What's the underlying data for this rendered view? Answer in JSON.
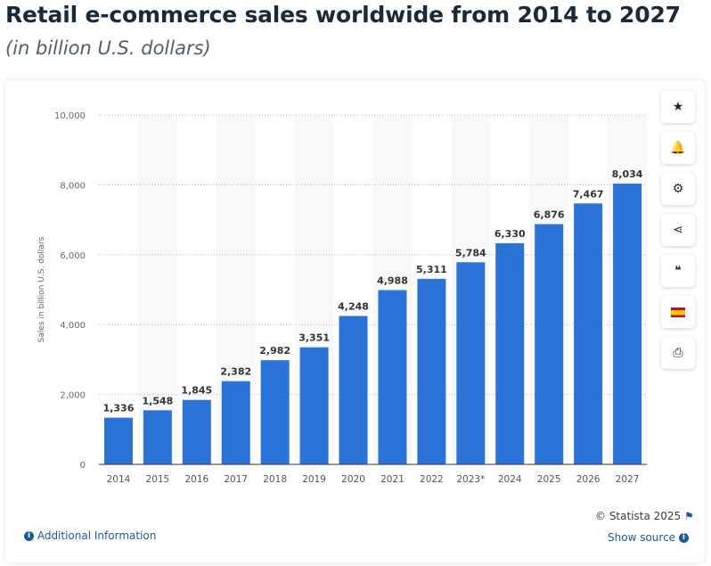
{
  "title": "Retail e-commerce sales worldwide from 2014 to 2027",
  "subtitle": "(in billion U.S. dollars)",
  "chart_data": {
    "type": "bar",
    "title": "Retail e-commerce sales worldwide from 2014 to 2027",
    "ylabel": "Sales in billion U.S. dollars",
    "xlabel": "",
    "ylim": [
      0,
      10000
    ],
    "yticks": [
      "0",
      "2,000",
      "4,000",
      "6,000",
      "8,000",
      "10,000"
    ],
    "ytick_values": [
      0,
      2000,
      4000,
      6000,
      8000,
      10000
    ],
    "categories": [
      "2014",
      "2015",
      "2016",
      "2017",
      "2018",
      "2019",
      "2020",
      "2021",
      "2022",
      "2023*",
      "2024",
      "2025",
      "2026",
      "2027"
    ],
    "values": [
      1336,
      1548,
      1845,
      2382,
      2982,
      3351,
      4248,
      4988,
      5311,
      5784,
      6330,
      6876,
      7467,
      8034
    ],
    "labels": [
      "1,336",
      "1,548",
      "1,845",
      "2,382",
      "2,982",
      "3,351",
      "4,248",
      "4,988",
      "5,311",
      "5,784",
      "6,330",
      "6,876",
      "7,467",
      "8,034"
    ],
    "bar_color": "#2b73d6",
    "grid": true
  },
  "toolbar": [
    {
      "icon": "star-icon",
      "glyph": "★"
    },
    {
      "icon": "bell-icon",
      "glyph": "🔔"
    },
    {
      "icon": "gear-icon",
      "glyph": "⚙"
    },
    {
      "icon": "share-icon",
      "glyph": "⋖"
    },
    {
      "icon": "quote-icon",
      "glyph": "❝"
    },
    {
      "icon": "flag-spain-icon",
      "glyph": ""
    },
    {
      "icon": "print-icon",
      "glyph": "⎙"
    }
  ],
  "footer": {
    "additional_info": "Additional Information",
    "copyright": "© Statista 2025",
    "show_source": "Show source"
  }
}
